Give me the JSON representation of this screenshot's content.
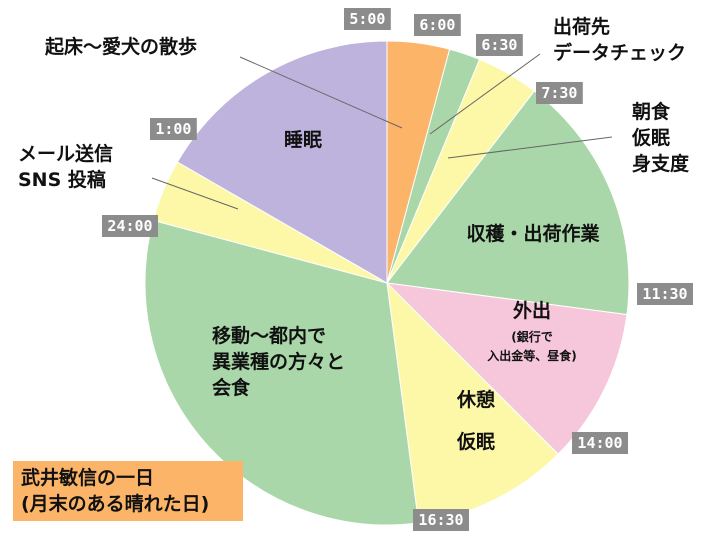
{
  "chart_data": {
    "type": "pie",
    "title": [
      "武井敏信の一日",
      "(月末のある晴れた日)"
    ],
    "start_time": "5:00",
    "slices": [
      {
        "start": "5:00",
        "end": "6:00",
        "color": "#fbb468"
      },
      {
        "start": "6:00",
        "end": "6:30",
        "color": "#a9d7a9"
      },
      {
        "start": "6:30",
        "end": "7:30",
        "color": "#fdf8a8"
      },
      {
        "start": "7:30",
        "end": "11:30",
        "color": "#a9d7a9"
      },
      {
        "start": "11:30",
        "end": "14:00",
        "color": "#f6c6da"
      },
      {
        "start": "14:00",
        "end": "16:30",
        "color": "#fdf8a8"
      },
      {
        "start": "16:30",
        "end": "24:00",
        "color": "#a9d7a9"
      },
      {
        "start": "24:00",
        "end": "1:00",
        "color": "#fdf8a8"
      },
      {
        "start": "1:00",
        "end": "5:00",
        "color": "#bdb3dc"
      }
    ],
    "activities": [
      {
        "lines": [
          "起床〜愛犬の散歩"
        ]
      },
      {
        "lines": [
          "出荷先",
          "データチェック"
        ]
      },
      {
        "lines": [
          "朝食",
          "仮眠",
          "身支度"
        ]
      },
      {
        "lines": [
          "収穫・出荷作業"
        ]
      },
      {
        "lines": [
          "外出"
        ],
        "sub": [
          "(銀行で",
          "入出金等、昼食)"
        ]
      },
      {
        "lines": [
          "休憩"
        ]
      },
      {
        "lines": [
          "仮眠"
        ]
      },
      {
        "lines": [
          "移動〜都内で",
          "異業種の方々と",
          "会食"
        ]
      },
      {
        "lines": [
          "メール送信",
          "SNS 投稿"
        ]
      },
      {
        "lines": [
          "睡眠"
        ]
      }
    ],
    "time_labels": [
      "5:00",
      "6:00",
      "6:30",
      "7:30",
      "11:30",
      "14:00",
      "16:30",
      "24:00",
      "1:00"
    ],
    "colors": {
      "title_box": "#fbb468",
      "time_box": "#8c8c8c",
      "pie_edge": "#ffffff",
      "leader": "#666666"
    }
  }
}
